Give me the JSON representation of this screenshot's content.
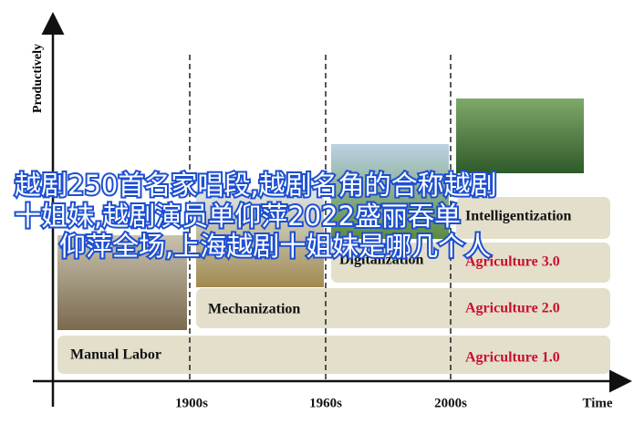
{
  "y_axis_label": "Productively",
  "x_ticks": [
    "1900s",
    "1960s",
    "2000s",
    "Time"
  ],
  "stages": [
    "Manual Labor",
    "Mechanization",
    "Digitalization",
    "Intelligentization"
  ],
  "agriculture": [
    "Agriculture 1.0",
    "Agriculture 2.0",
    "Agriculture 3.0"
  ],
  "overlay": [
    "越剧250首名家唱段,越剧名角的合称越剧",
    "十姐妹,越剧演员单仰萍2022盛丽吞单",
    "仰萍全场,上海越剧十姐妹是哪几个人"
  ]
}
